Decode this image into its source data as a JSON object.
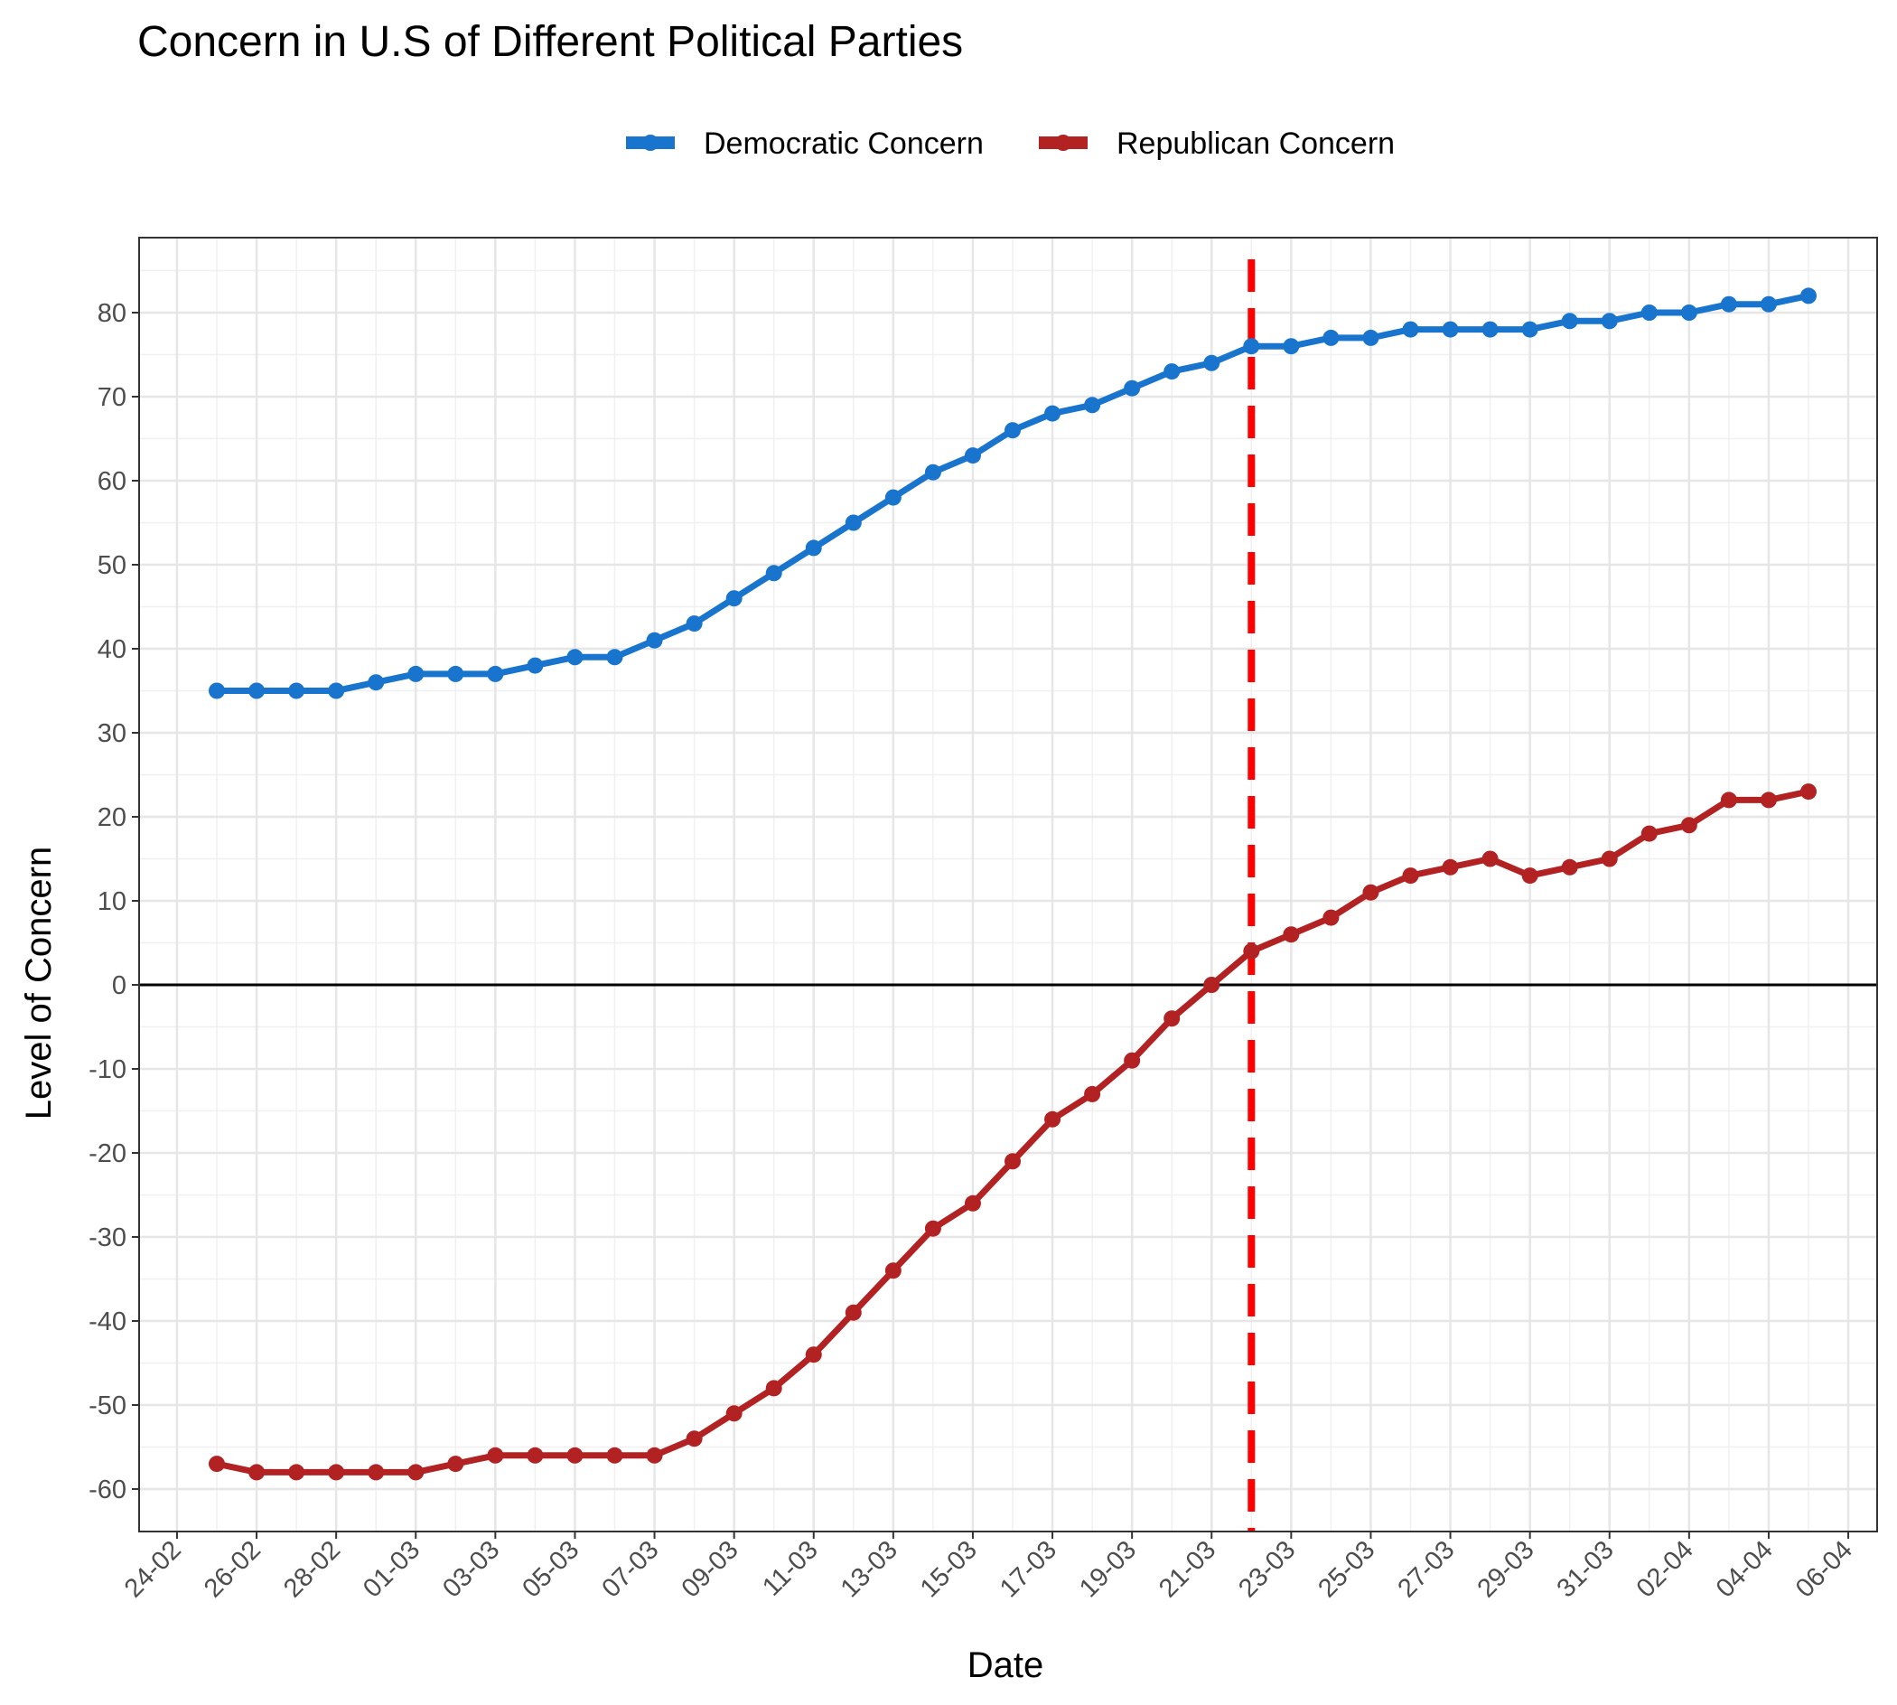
{
  "chart_data": {
    "type": "line",
    "title": "Concern in U.S of Different Political Parties",
    "xlabel": "Date",
    "ylabel": "Level of Concern",
    "x": [
      "25-02",
      "26-02",
      "27-02",
      "28-02",
      "29-02",
      "01-03",
      "02-03",
      "03-03",
      "04-03",
      "05-03",
      "06-03",
      "07-03",
      "08-03",
      "09-03",
      "10-03",
      "11-03",
      "12-03",
      "13-03",
      "14-03",
      "15-03",
      "16-03",
      "17-03",
      "18-03",
      "19-03",
      "20-03",
      "21-03",
      "22-03",
      "23-03",
      "24-03",
      "25-03",
      "26-03",
      "27-03",
      "28-03",
      "29-03",
      "30-03",
      "31-03",
      "01-04",
      "02-04",
      "03-04",
      "04-04",
      "05-04"
    ],
    "x_ticks": [
      "24-02",
      "26-02",
      "28-02",
      "01-03",
      "03-03",
      "05-03",
      "07-03",
      "09-03",
      "11-03",
      "13-03",
      "15-03",
      "17-03",
      "19-03",
      "21-03",
      "23-03",
      "25-03",
      "27-03",
      "29-03",
      "31-03",
      "02-04",
      "04-04",
      "06-04"
    ],
    "y_ticks": [
      80,
      70,
      60,
      50,
      40,
      30,
      20,
      10,
      0,
      -10,
      -20,
      -30,
      -40,
      -50,
      -60
    ],
    "ylim": [
      -65,
      89
    ],
    "grid": true,
    "legend_position": "top",
    "reference_lines": {
      "horizontal_y": 0,
      "vertical_date": "22-03",
      "vertical_color": "#ff0000"
    },
    "series": [
      {
        "name": "Democratic Concern",
        "color": "#1874cd",
        "values": [
          35,
          35,
          35,
          35,
          36,
          37,
          37,
          37,
          38,
          39,
          39,
          41,
          43,
          46,
          49,
          52,
          55,
          58,
          61,
          63,
          66,
          68,
          69,
          71,
          73,
          74,
          76,
          76,
          77,
          77,
          78,
          78,
          78,
          78,
          79,
          79,
          80,
          80,
          81,
          81,
          82
        ]
      },
      {
        "name": "Republican Concern",
        "color": "#b22222",
        "values": [
          -57,
          -58,
          -58,
          -58,
          -58,
          -58,
          -57,
          -56,
          -56,
          -56,
          -56,
          -56,
          -54,
          -51,
          -48,
          -44,
          -39,
          -34,
          -29,
          -26,
          -21,
          -16,
          -13,
          -9,
          -4,
          0,
          4,
          6,
          8,
          11,
          13,
          14,
          15,
          13,
          14,
          15,
          18,
          19,
          22,
          22,
          23
        ]
      }
    ]
  }
}
